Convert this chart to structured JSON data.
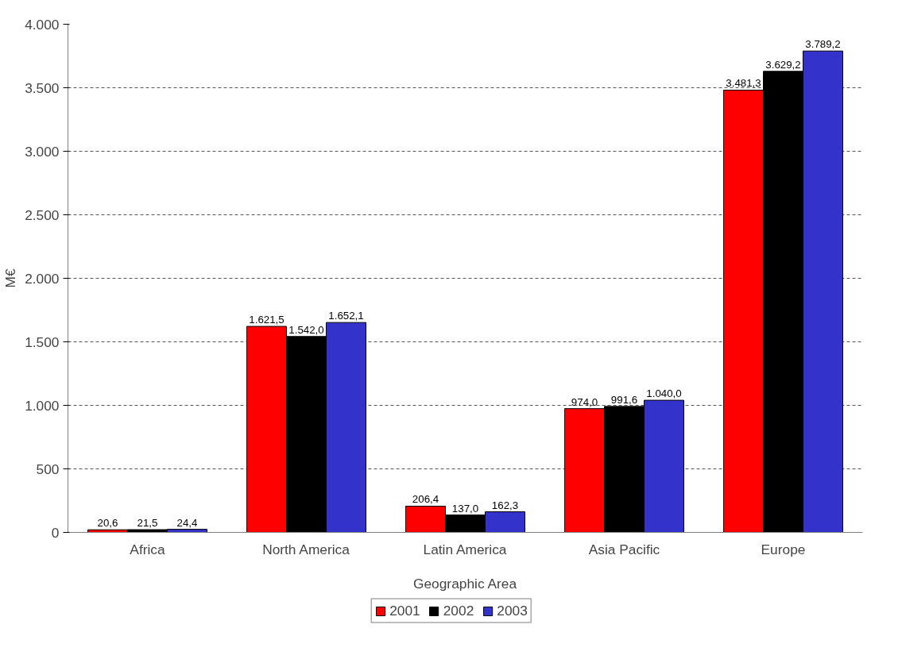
{
  "chart_data": {
    "type": "bar",
    "xlabel": "Geographic Area",
    "ylabel": "M€",
    "categories": [
      "Africa",
      "North America",
      "Latin America",
      "Asia Pacific",
      "Europe"
    ],
    "series": [
      {
        "name": "2001",
        "color": "#ff0000",
        "values": [
          20.6,
          1621.5,
          206.4,
          974.0,
          3481.3
        ],
        "value_labels": [
          "20,6",
          "1.621,5",
          "206,4",
          "974,0",
          "3.481,3"
        ]
      },
      {
        "name": "2002",
        "color": "#000000",
        "values": [
          21.5,
          1542.0,
          137.0,
          991.6,
          3629.2
        ],
        "value_labels": [
          "21,5",
          "1.542,0",
          "137,0",
          "991,6",
          "3.629,2"
        ]
      },
      {
        "name": "2003",
        "color": "#3333cc",
        "values": [
          24.4,
          1652.1,
          162.3,
          1040.0,
          3789.2
        ],
        "value_labels": [
          "24,4",
          "1.652,1",
          "162,3",
          "1.040,0",
          "3.789,2"
        ]
      }
    ],
    "ylim": [
      0,
      4000
    ],
    "yticks": [
      0,
      500,
      {
        "value": 1000,
        "label": "1.000"
      },
      {
        "value": 1500,
        "label": "1.500"
      },
      {
        "value": 2000,
        "label": "2.000"
      },
      {
        "value": 2500,
        "label": "2.500"
      },
      {
        "value": 3000,
        "label": "3.000"
      },
      {
        "value": 3500,
        "label": "3.500"
      },
      {
        "value": 4000,
        "label": "4.000"
      }
    ],
    "grid": "y",
    "legend": "bottom"
  }
}
